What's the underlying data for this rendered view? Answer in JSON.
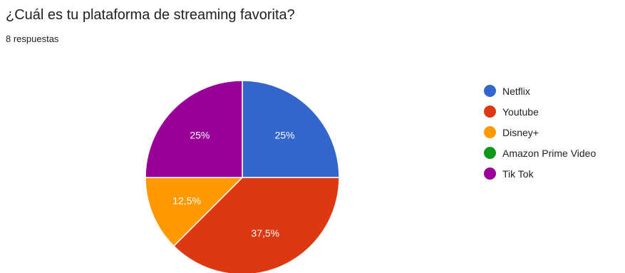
{
  "header": {
    "question": "¿Cuál es tu plataforma de streaming favorita?",
    "responses": "8 respuestas"
  },
  "chart_data": {
    "type": "pie",
    "title": "¿Cuál es tu plataforma de streaming favorita?",
    "subtitle": "8 respuestas",
    "total_responses": 8,
    "legend_position": "right",
    "slices": [
      {
        "label": "Netflix",
        "value": 25,
        "display": "25%",
        "color": "#3366cc"
      },
      {
        "label": "Youtube",
        "value": 37.5,
        "display": "37,5%",
        "color": "#dc3912"
      },
      {
        "label": "Disney+",
        "value": 12.5,
        "display": "12,5%",
        "color": "#ff9900"
      },
      {
        "label": "Amazon Prime Video",
        "value": 0,
        "display": "",
        "color": "#109618"
      },
      {
        "label": "Tik Tok",
        "value": 25,
        "display": "25%",
        "color": "#990099"
      }
    ]
  }
}
